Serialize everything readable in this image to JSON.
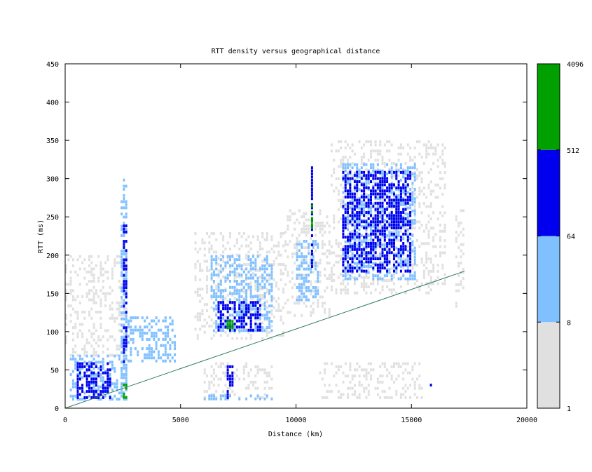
{
  "chart_data": {
    "type": "heatmap",
    "title": "RTT density versus geographical distance",
    "xlabel": "Distance (km)",
    "ylabel": "RTT (ms)",
    "xlim": [
      0,
      20000
    ],
    "ylim": [
      0,
      450
    ],
    "x_ticks": [
      0,
      5000,
      10000,
      15000,
      20000
    ],
    "y_ticks": [
      0,
      50,
      100,
      150,
      200,
      250,
      300,
      350,
      400,
      450
    ],
    "colorbar": {
      "scale": "log",
      "ticks": [
        1,
        8,
        64,
        512,
        4096
      ],
      "bands": [
        {
          "from": 1,
          "to": 8,
          "color": "#e0e0e0"
        },
        {
          "from": 8,
          "to": 64,
          "color": "#80c0ff"
        },
        {
          "from": 64,
          "to": 512,
          "color": "#0000ee"
        },
        {
          "from": 512,
          "to": 4096,
          "color": "#00a000"
        }
      ]
    },
    "reference_line": {
      "color": "#2e7d5b",
      "from": [
        0,
        0
      ],
      "to": [
        17300,
        179
      ]
    },
    "clusters": [
      {
        "x": [
          200,
          2700
        ],
        "y": [
          10,
          70
        ],
        "level": 1
      },
      {
        "x": [
          0,
          2700
        ],
        "y": [
          70,
          200
        ],
        "level": 0
      },
      {
        "x": [
          500,
          2000
        ],
        "y": [
          12,
          60
        ],
        "level": 2
      },
      {
        "x": [
          2400,
          2650
        ],
        "y": [
          20,
          300
        ],
        "level": 1
      },
      {
        "x": [
          2500,
          2650
        ],
        "y": [
          60,
          240
        ],
        "level": 2
      },
      {
        "x": [
          2500,
          2650
        ],
        "y": [
          15,
          32
        ],
        "level": 3
      },
      {
        "x": [
          2700,
          4800
        ],
        "y": [
          60,
          120
        ],
        "level": 1
      },
      {
        "x": [
          5600,
          9500
        ],
        "y": [
          90,
          230
        ],
        "level": 0
      },
      {
        "x": [
          6300,
          9000
        ],
        "y": [
          100,
          200
        ],
        "level": 1
      },
      {
        "x": [
          6600,
          8500
        ],
        "y": [
          100,
          140
        ],
        "level": 2
      },
      {
        "x": [
          7000,
          7400
        ],
        "y": [
          105,
          115
        ],
        "level": 3
      },
      {
        "x": [
          6000,
          9000
        ],
        "y": [
          12,
          60
        ],
        "level": 0
      },
      {
        "x": [
          6000,
          9000
        ],
        "y": [
          12,
          18
        ],
        "level": 1
      },
      {
        "x": [
          7000,
          7300
        ],
        "y": [
          12,
          60
        ],
        "level": 2
      },
      {
        "x": [
          9500,
          11500
        ],
        "y": [
          120,
          260
        ],
        "level": 0
      },
      {
        "x": [
          10000,
          11000
        ],
        "y": [
          140,
          220
        ],
        "level": 1
      },
      {
        "x": [
          10650,
          10750
        ],
        "y": [
          180,
          320
        ],
        "level": 2
      },
      {
        "x": [
          10650,
          10750
        ],
        "y": [
          230,
          270
        ],
        "level": 3
      },
      {
        "x": [
          11500,
          16500
        ],
        "y": [
          150,
          350
        ],
        "level": 0
      },
      {
        "x": [
          12000,
          15200
        ],
        "y": [
          170,
          320
        ],
        "level": 1
      },
      {
        "x": [
          12000,
          15000
        ],
        "y": [
          180,
          310
        ],
        "level": 2
      },
      {
        "x": [
          11000,
          15500
        ],
        "y": [
          15,
          60
        ],
        "level": 0
      },
      {
        "x": [
          15700,
          15900
        ],
        "y": [
          28,
          32
        ],
        "level": 2
      },
      {
        "x": [
          16900,
          17300
        ],
        "y": [
          120,
          260
        ],
        "level": 0
      }
    ]
  }
}
